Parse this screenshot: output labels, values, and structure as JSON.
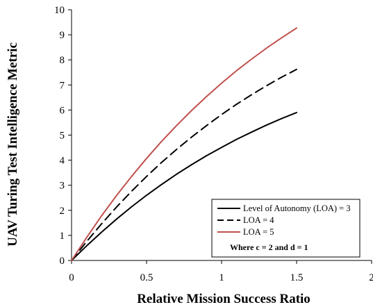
{
  "chart_data": {
    "type": "line",
    "xlabel": "Relative Mission Success Ratio",
    "ylabel": "UAV Turing Test Intelligence Metric",
    "xlim": [
      0,
      2
    ],
    "ylim": [
      0,
      10
    ],
    "xticks": [
      0,
      0.5,
      1,
      1.5,
      2
    ],
    "yticks": [
      0,
      1,
      2,
      3,
      4,
      5,
      6,
      7,
      8,
      9,
      10
    ],
    "grid": false,
    "legend_position": "bottom-right",
    "x": [
      0,
      0.1,
      0.2,
      0.3,
      0.4,
      0.5,
      0.6,
      0.7,
      0.8,
      0.9,
      1.0,
      1.1,
      1.2,
      1.3,
      1.4,
      1.5
    ],
    "series": [
      {
        "name": "Level of Autonomy (LOA) = 3",
        "color": "#000000",
        "style": "solid",
        "values": [
          0,
          0.58,
          1.13,
          1.65,
          2.14,
          2.6,
          3.03,
          3.44,
          3.82,
          4.18,
          4.51,
          4.83,
          5.12,
          5.4,
          5.66,
          5.9
        ]
      },
      {
        "name": "LOA = 4",
        "color": "#000000",
        "style": "dashed",
        "values": [
          0,
          0.75,
          1.46,
          2.13,
          2.76,
          3.35,
          3.91,
          4.43,
          4.92,
          5.38,
          5.82,
          6.23,
          6.61,
          6.97,
          7.31,
          7.62
        ]
      },
      {
        "name": "LOA = 5",
        "color": "#c0504d",
        "style": "solid",
        "values": [
          0,
          0.91,
          1.78,
          2.59,
          3.35,
          4.07,
          4.75,
          5.38,
          5.98,
          6.54,
          7.07,
          7.57,
          8.03,
          8.47,
          8.88,
          9.27
        ]
      }
    ],
    "annotation": "Where c = 2 and d = 1"
  }
}
